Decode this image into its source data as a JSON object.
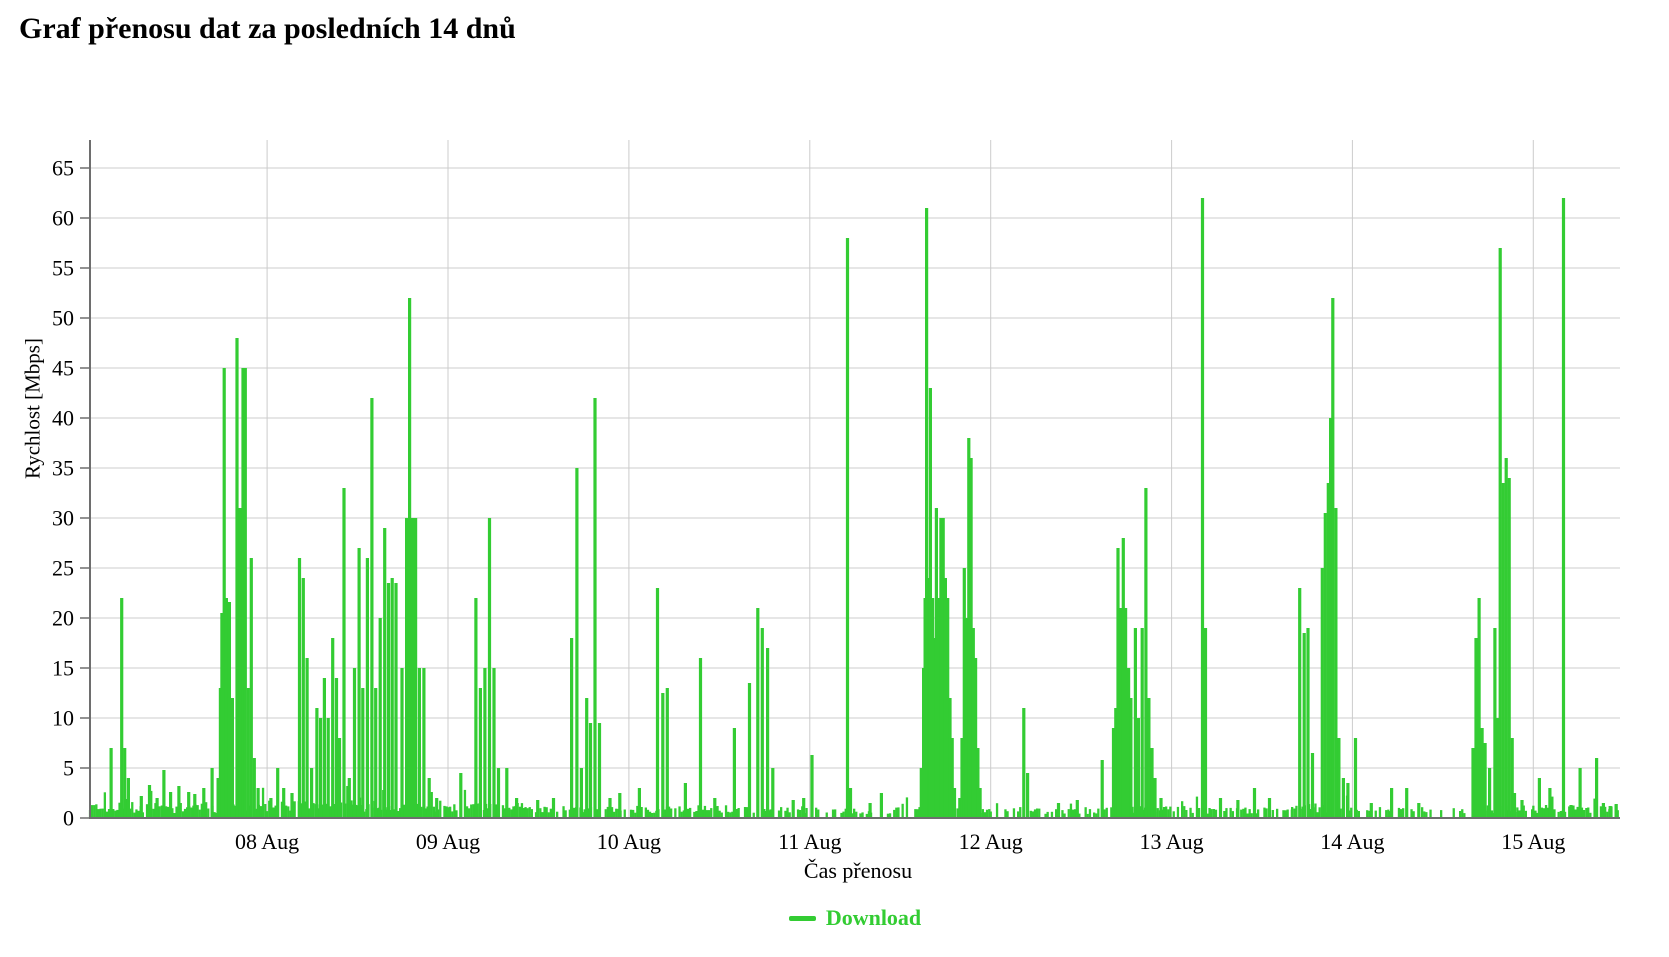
{
  "page": {
    "title": "Graf přenosu dat za posledních 14 dnů"
  },
  "colors": {
    "bar": "#33cc33",
    "grid": "#cccccc",
    "axis": "#6e6e6e",
    "text": "#000000",
    "background": "#ffffff",
    "legend_text": "#33cc33"
  },
  "chart_data": {
    "type": "bar",
    "title": "Graf přenosu dat za posledních 14 dnů",
    "xlabel": "Čas přenosu",
    "ylabel": "Rychlost [Mbps]",
    "unit": "Mbps",
    "grid": true,
    "legend": [
      {
        "name": "Download",
        "color": "#33cc33"
      }
    ],
    "legend_position": "bottom-center",
    "x_tick_labels": [
      "08 Aug",
      "09 Aug",
      "10 Aug",
      "11 Aug",
      "12 Aug",
      "13 Aug",
      "14 Aug",
      "15 Aug"
    ],
    "x_tick_hours": [
      24,
      48,
      72,
      96,
      120,
      144,
      168,
      192
    ],
    "t_range_hours": [
      0.5,
      203.5
    ],
    "time_origin_label": "hours from 07 Aug 00:00",
    "y_ticks": [
      0,
      5,
      10,
      15,
      20,
      25,
      30,
      35,
      40,
      45,
      50,
      55,
      60,
      65
    ],
    "ylim": [
      0,
      67.8
    ],
    "bars_t_hours_value": [
      [
        3.3,
        7
      ],
      [
        4.7,
        22
      ],
      [
        5.1,
        7
      ],
      [
        5.6,
        4
      ],
      [
        7.3,
        2.2
      ],
      [
        8.4,
        3.3
      ],
      [
        9.4,
        2
      ],
      [
        10.3,
        4.8
      ],
      [
        11.2,
        2.6
      ],
      [
        12.3,
        3.2
      ],
      [
        13.6,
        2.6
      ],
      [
        14.4,
        2.4
      ],
      [
        15.6,
        3
      ],
      [
        16.7,
        5
      ],
      [
        17.5,
        4
      ],
      [
        17.8,
        13
      ],
      [
        18.0,
        20.5
      ],
      [
        18.3,
        45
      ],
      [
        18.6,
        22
      ],
      [
        19.0,
        21.6
      ],
      [
        19.4,
        12
      ],
      [
        20.0,
        48
      ],
      [
        20.4,
        31
      ],
      [
        20.8,
        45
      ],
      [
        21.1,
        45
      ],
      [
        21.5,
        13
      ],
      [
        21.9,
        26
      ],
      [
        22.3,
        6
      ],
      [
        22.8,
        3
      ],
      [
        24.5,
        2
      ],
      [
        25.4,
        5
      ],
      [
        26.2,
        3
      ],
      [
        27.3,
        2.5
      ],
      [
        28.3,
        26
      ],
      [
        28.8,
        24
      ],
      [
        29.3,
        16
      ],
      [
        29.9,
        5
      ],
      [
        30.6,
        11
      ],
      [
        31.1,
        10
      ],
      [
        31.6,
        14
      ],
      [
        32.1,
        10
      ],
      [
        32.7,
        18
      ],
      [
        33.2,
        14
      ],
      [
        33.6,
        8
      ],
      [
        34.2,
        33
      ],
      [
        34.9,
        4
      ],
      [
        35.6,
        15
      ],
      [
        36.2,
        27
      ],
      [
        36.7,
        13
      ],
      [
        37.3,
        26
      ],
      [
        37.9,
        42
      ],
      [
        38.4,
        13
      ],
      [
        39.0,
        20
      ],
      [
        39.6,
        29
      ],
      [
        40.1,
        23.5
      ],
      [
        40.6,
        24
      ],
      [
        41.1,
        23.5
      ],
      [
        41.9,
        15
      ],
      [
        42.5,
        30
      ],
      [
        42.9,
        52
      ],
      [
        43.3,
        30
      ],
      [
        43.7,
        30
      ],
      [
        44.2,
        15
      ],
      [
        44.8,
        15
      ],
      [
        45.5,
        4
      ],
      [
        46.5,
        2
      ],
      [
        49.7,
        4.5
      ],
      [
        51.7,
        22
      ],
      [
        52.3,
        13
      ],
      [
        52.9,
        15
      ],
      [
        53.5,
        30
      ],
      [
        54.1,
        15
      ],
      [
        54.7,
        5
      ],
      [
        55.8,
        5
      ],
      [
        57.1,
        2
      ],
      [
        59.9,
        1.8
      ],
      [
        62.0,
        2
      ],
      [
        64.4,
        18
      ],
      [
        65.1,
        35
      ],
      [
        65.7,
        5
      ],
      [
        66.4,
        12
      ],
      [
        66.9,
        9.5
      ],
      [
        67.5,
        42
      ],
      [
        68.1,
        9.5
      ],
      [
        69.5,
        2
      ],
      [
        70.8,
        2.5
      ],
      [
        73.4,
        3
      ],
      [
        75.8,
        23
      ],
      [
        76.5,
        12.5
      ],
      [
        77.1,
        13
      ],
      [
        79.5,
        3.5
      ],
      [
        81.5,
        16
      ],
      [
        83.4,
        2
      ],
      [
        86.0,
        9
      ],
      [
        88.0,
        13.5
      ],
      [
        89.1,
        21
      ],
      [
        89.7,
        19
      ],
      [
        90.4,
        17
      ],
      [
        91.1,
        5
      ],
      [
        93.8,
        1.8
      ],
      [
        95.2,
        2
      ],
      [
        96.3,
        6.3
      ],
      [
        101.0,
        58
      ],
      [
        101.4,
        3
      ],
      [
        104.0,
        1.5
      ],
      [
        105.5,
        2.5
      ],
      [
        110.8,
        5
      ],
      [
        111.1,
        15
      ],
      [
        111.3,
        22
      ],
      [
        111.5,
        61
      ],
      [
        111.8,
        24
      ],
      [
        112.0,
        43
      ],
      [
        112.3,
        22
      ],
      [
        112.5,
        18
      ],
      [
        112.8,
        31
      ],
      [
        113.1,
        22
      ],
      [
        113.4,
        30
      ],
      [
        113.7,
        30
      ],
      [
        114.0,
        24
      ],
      [
        114.3,
        22
      ],
      [
        114.6,
        12
      ],
      [
        114.9,
        8
      ],
      [
        115.2,
        3
      ],
      [
        115.9,
        2
      ],
      [
        116.2,
        8
      ],
      [
        116.5,
        25
      ],
      [
        116.8,
        20
      ],
      [
        117.1,
        38
      ],
      [
        117.4,
        36
      ],
      [
        117.7,
        19
      ],
      [
        118.0,
        16
      ],
      [
        118.3,
        7
      ],
      [
        118.6,
        3
      ],
      [
        124.4,
        11
      ],
      [
        124.9,
        4.5
      ],
      [
        129.0,
        1.5
      ],
      [
        131.5,
        1.8
      ],
      [
        134.8,
        5.8
      ],
      [
        136.3,
        9
      ],
      [
        136.6,
        11
      ],
      [
        136.9,
        27
      ],
      [
        137.3,
        21
      ],
      [
        137.6,
        28
      ],
      [
        137.9,
        21
      ],
      [
        138.3,
        15
      ],
      [
        138.6,
        12
      ],
      [
        139.2,
        19
      ],
      [
        139.6,
        10
      ],
      [
        140.1,
        19
      ],
      [
        140.6,
        33
      ],
      [
        141.0,
        12
      ],
      [
        141.4,
        7
      ],
      [
        141.8,
        4
      ],
      [
        142.6,
        2
      ],
      [
        148.1,
        62
      ],
      [
        148.5,
        19
      ],
      [
        150.5,
        2
      ],
      [
        152.8,
        1.8
      ],
      [
        155.0,
        3
      ],
      [
        157.0,
        2
      ],
      [
        161.0,
        23
      ],
      [
        161.6,
        18.5
      ],
      [
        162.1,
        19
      ],
      [
        162.7,
        6.5
      ],
      [
        164.0,
        25
      ],
      [
        164.4,
        30.5
      ],
      [
        164.8,
        33.5
      ],
      [
        165.1,
        40
      ],
      [
        165.4,
        52
      ],
      [
        165.8,
        31
      ],
      [
        166.2,
        8
      ],
      [
        166.8,
        4
      ],
      [
        167.4,
        3.5
      ],
      [
        168.4,
        8
      ],
      [
        170.5,
        1.5
      ],
      [
        173.2,
        3
      ],
      [
        175.2,
        3
      ],
      [
        176.8,
        1.5
      ],
      [
        184.0,
        7
      ],
      [
        184.4,
        18
      ],
      [
        184.8,
        22
      ],
      [
        185.2,
        9
      ],
      [
        185.6,
        7.5
      ],
      [
        186.2,
        5
      ],
      [
        186.9,
        19
      ],
      [
        187.3,
        10
      ],
      [
        187.6,
        57
      ],
      [
        188.0,
        33.5
      ],
      [
        188.4,
        36
      ],
      [
        188.8,
        34
      ],
      [
        189.2,
        8
      ],
      [
        189.5,
        2.5
      ],
      [
        190.5,
        1.8
      ],
      [
        192.8,
        4
      ],
      [
        194.2,
        3
      ],
      [
        196.0,
        62
      ],
      [
        197.0,
        1.3
      ],
      [
        198.2,
        5
      ],
      [
        199.1,
        1
      ],
      [
        200.4,
        6
      ],
      [
        201.3,
        1.5
      ],
      [
        202.2,
        1.2
      ],
      [
        203.0,
        1.4
      ]
    ],
    "baseline_noise_segments": [
      [
        0.5,
        24,
        0.93,
        0.5,
        1.6
      ],
      [
        24,
        48,
        0.92,
        0.6,
        1.8
      ],
      [
        48,
        58,
        0.85,
        0.5,
        1.5
      ],
      [
        58,
        72,
        0.7,
        0.5,
        1.2
      ],
      [
        72,
        88,
        0.78,
        0.5,
        1.3
      ],
      [
        88,
        96,
        0.8,
        0.5,
        1.2
      ],
      [
        96,
        110,
        0.5,
        0.4,
        1.1
      ],
      [
        110,
        120,
        0.75,
        0.5,
        1.3
      ],
      [
        120,
        136,
        0.55,
        0.4,
        1.1
      ],
      [
        136,
        144,
        0.72,
        0.5,
        1.2
      ],
      [
        144,
        160,
        0.62,
        0.4,
        1.2
      ],
      [
        160,
        168,
        0.72,
        0.5,
        1.3
      ],
      [
        168,
        184,
        0.5,
        0.4,
        1.1
      ],
      [
        184,
        192,
        0.78,
        0.5,
        1.3
      ],
      [
        192,
        203.5,
        0.75,
        0.5,
        1.4
      ]
    ],
    "noise_seed": 11,
    "noise_step_hours": 0.28
  }
}
